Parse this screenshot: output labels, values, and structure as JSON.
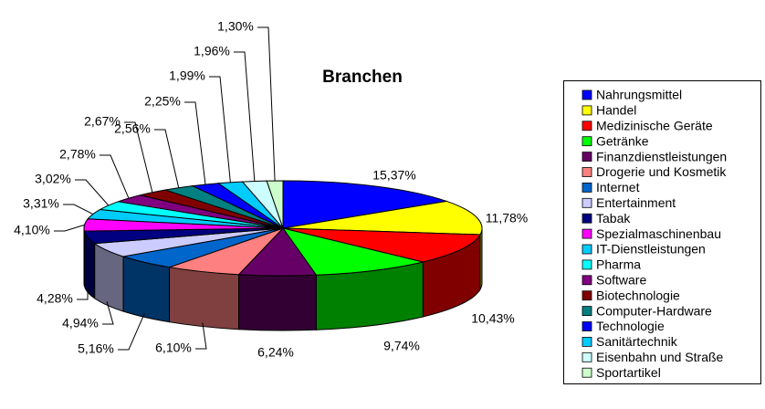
{
  "chart_data": {
    "type": "pie3d",
    "title": "Branchen",
    "categories": [
      "Nahrungsmittel",
      "Handel",
      "Medizinische Geräte",
      "Getränke",
      "Finanzdienstleistungen",
      "Drogerie und Kosmetik",
      "Internet",
      "Entertainment",
      "Tabak",
      "Spezialmaschinenbau",
      "IT-Dienstleistungen",
      "Pharma",
      "Software",
      "Biotechnologie",
      "Computer-Hardware",
      "Technologie",
      "Sanitärtechnik",
      "Eisenbahn und Straße",
      "Sportartikel"
    ],
    "values": [
      15.37,
      11.78,
      10.43,
      9.74,
      6.24,
      6.1,
      5.16,
      4.94,
      4.28,
      4.1,
      3.31,
      3.02,
      2.78,
      2.67,
      2.56,
      2.25,
      1.99,
      1.96,
      1.3
    ],
    "value_labels": [
      "15,37%",
      "11,78%",
      "10,43%",
      "9,74%",
      "6,24%",
      "6,10%",
      "5,16%",
      "4,94%",
      "4,28%",
      "4,10%",
      "3,31%",
      "3,02%",
      "2,78%",
      "2,67%",
      "2,56%",
      "2,25%",
      "1,99%",
      "1,96%",
      "1,30%"
    ],
    "colors": [
      "#0000ff",
      "#ffff00",
      "#ff0000",
      "#00ff00",
      "#660066",
      "#ff8080",
      "#0066cc",
      "#ccccff",
      "#000080",
      "#ff00ff",
      "#00ccff",
      "#00ffff",
      "#800080",
      "#800000",
      "#008080",
      "#0000ff",
      "#00ccff",
      "#ccffff",
      "#ccffcc"
    ],
    "legend": "right"
  }
}
